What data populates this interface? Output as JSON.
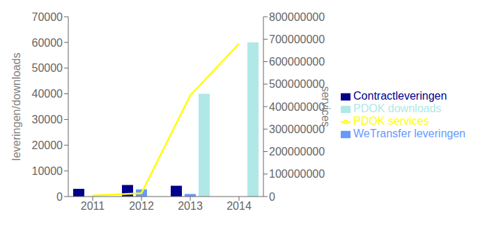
{
  "chart_data": {
    "type": "bar",
    "categories": [
      "2011",
      "2012",
      "2013",
      "2014"
    ],
    "ylabel": "leveringen/downloads",
    "y2label": "services",
    "series": [
      {
        "name": "Contractleveringen",
        "type": "bar",
        "color": "#00008B",
        "values": [
          3000,
          4500,
          4200,
          0
        ]
      },
      {
        "name": "WeTransfer leveringen",
        "type": "bar",
        "color": "#6699FF",
        "values": [
          0,
          2800,
          1000,
          0
        ]
      },
      {
        "name": "PDOK downloads",
        "type": "bar",
        "color": "#B0E8E8",
        "values": [
          0,
          0,
          40000,
          60000
        ]
      },
      {
        "name": "PDOK services",
        "type": "line",
        "axis": "y2",
        "color": "#FFFF00",
        "values": [
          5000000,
          15000000,
          450000000,
          680000000
        ]
      }
    ],
    "ylim": [
      0,
      70000
    ],
    "yticks": [
      0,
      10000,
      20000,
      30000,
      40000,
      50000,
      60000,
      70000
    ],
    "y2lim": [
      0,
      800000000
    ],
    "y2ticks": [
      0,
      100000000,
      200000000,
      300000000,
      400000000,
      500000000,
      600000000,
      700000000,
      800000000
    ],
    "grid": false,
    "legend": "right"
  }
}
